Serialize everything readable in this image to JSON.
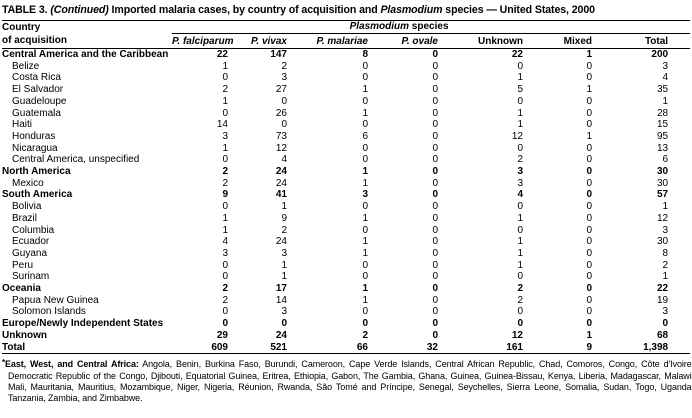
{
  "title": {
    "t1": "TABLE 3. ",
    "t2": "(Continued)",
    "t3": " Imported malaria cases, by country of acquisition and ",
    "t4": "Plasmodium",
    "t5": " species — United States, 2000"
  },
  "table": {
    "country_header_line1": "Country",
    "country_header_line2": "of acquisition",
    "group_header": {
      "italic": "Plasmodium",
      "rest": " species"
    },
    "columns": [
      {
        "label": "P. falciparum",
        "italic": true
      },
      {
        "label": "P. vivax",
        "italic": true
      },
      {
        "label": "P. malariae",
        "italic": true
      },
      {
        "label": "P. ovale",
        "italic": true
      },
      {
        "label": "Unknown",
        "italic": false
      },
      {
        "label": "Mixed",
        "italic": false
      },
      {
        "label": "Total",
        "italic": false
      }
    ],
    "rows": [
      {
        "label": "Central America and the Caribbean",
        "bold": true,
        "indent": false,
        "values": [
          "22",
          "147",
          "8",
          "0",
          "22",
          "1",
          "200"
        ]
      },
      {
        "label": "Belize",
        "bold": false,
        "indent": true,
        "values": [
          "1",
          "2",
          "0",
          "0",
          "0",
          "0",
          "3"
        ]
      },
      {
        "label": "Costa Rica",
        "bold": false,
        "indent": true,
        "values": [
          "0",
          "3",
          "0",
          "0",
          "1",
          "0",
          "4"
        ]
      },
      {
        "label": "El Salvador",
        "bold": false,
        "indent": true,
        "values": [
          "2",
          "27",
          "1",
          "0",
          "5",
          "1",
          "35"
        ]
      },
      {
        "label": "Guadeloupe",
        "bold": false,
        "indent": true,
        "values": [
          "1",
          "0",
          "0",
          "0",
          "0",
          "0",
          "1"
        ]
      },
      {
        "label": "Guatemala",
        "bold": false,
        "indent": true,
        "values": [
          "0",
          "26",
          "1",
          "0",
          "1",
          "0",
          "28"
        ]
      },
      {
        "label": "Haiti",
        "bold": false,
        "indent": true,
        "values": [
          "14",
          "0",
          "0",
          "0",
          "1",
          "0",
          "15"
        ]
      },
      {
        "label": "Honduras",
        "bold": false,
        "indent": true,
        "values": [
          "3",
          "73",
          "6",
          "0",
          "12",
          "1",
          "95"
        ]
      },
      {
        "label": "Nicaragua",
        "bold": false,
        "indent": true,
        "values": [
          "1",
          "12",
          "0",
          "0",
          "0",
          "0",
          "13"
        ]
      },
      {
        "label": "Central America, unspecified",
        "bold": false,
        "indent": true,
        "values": [
          "0",
          "4",
          "0",
          "0",
          "2",
          "0",
          "6"
        ]
      },
      {
        "label": "North America",
        "bold": true,
        "indent": false,
        "values": [
          "2",
          "24",
          "1",
          "0",
          "3",
          "0",
          "30"
        ]
      },
      {
        "label": "Mexico",
        "bold": false,
        "indent": true,
        "values": [
          "2",
          "24",
          "1",
          "0",
          "3",
          "0",
          "30"
        ]
      },
      {
        "label": "South America",
        "bold": true,
        "indent": false,
        "values": [
          "9",
          "41",
          "3",
          "0",
          "4",
          "0",
          "57"
        ]
      },
      {
        "label": "Bolivia",
        "bold": false,
        "indent": true,
        "values": [
          "0",
          "1",
          "0",
          "0",
          "0",
          "0",
          "1"
        ]
      },
      {
        "label": "Brazil",
        "bold": false,
        "indent": true,
        "values": [
          "1",
          "9",
          "1",
          "0",
          "1",
          "0",
          "12"
        ]
      },
      {
        "label": "Columbia",
        "bold": false,
        "indent": true,
        "values": [
          "1",
          "2",
          "0",
          "0",
          "0",
          "0",
          "3"
        ]
      },
      {
        "label": "Ecuador",
        "bold": false,
        "indent": true,
        "values": [
          "4",
          "24",
          "1",
          "0",
          "1",
          "0",
          "30"
        ]
      },
      {
        "label": "Guyana",
        "bold": false,
        "indent": true,
        "values": [
          "3",
          "3",
          "1",
          "0",
          "1",
          "0",
          "8"
        ]
      },
      {
        "label": "Peru",
        "bold": false,
        "indent": true,
        "values": [
          "0",
          "1",
          "0",
          "0",
          "1",
          "0",
          "2"
        ]
      },
      {
        "label": "Surinam",
        "bold": false,
        "indent": true,
        "values": [
          "0",
          "1",
          "0",
          "0",
          "0",
          "0",
          "1"
        ]
      },
      {
        "label": "Oceania",
        "bold": true,
        "indent": false,
        "values": [
          "2",
          "17",
          "1",
          "0",
          "2",
          "0",
          "22"
        ]
      },
      {
        "label": "Papua New Guinea",
        "bold": false,
        "indent": true,
        "values": [
          "2",
          "14",
          "1",
          "0",
          "2",
          "0",
          "19"
        ]
      },
      {
        "label": "Solomon Islands",
        "bold": false,
        "indent": true,
        "values": [
          "0",
          "3",
          "0",
          "0",
          "0",
          "0",
          "3"
        ]
      },
      {
        "label": "Europe/Newly Independent States",
        "bold": true,
        "indent": false,
        "values": [
          "0",
          "0",
          "0",
          "0",
          "0",
          "0",
          "0"
        ]
      },
      {
        "label": "Unknown",
        "bold": true,
        "indent": false,
        "values": [
          "29",
          "24",
          "2",
          "0",
          "12",
          "1",
          "68"
        ]
      },
      {
        "label": "Total",
        "bold": true,
        "indent": false,
        "values": [
          "609",
          "521",
          "66",
          "32",
          "161",
          "9",
          "1,398"
        ]
      }
    ]
  },
  "footnote": {
    "marker": "*",
    "lead": "East, West, and Central Africa:",
    "text": " Angola, Benin, Burkina Faso, Burundi, Cameroon, Cape Verde Islands, Central African Republic, Chad, Comoros, Congo, Côte d'Ivoire, Democratic Republic of the Congo, Djibouti, Equatorial Guinea, Eritrea, Ethiopia, Gabon, The Gambia, Ghana, Guinea, Guinea-Bissau, Kenya, Liberia, Madagascar, Malawi, Mali, Mauritania, Mauritius, Mozambique, Niger, Nigeria, Réunion, Rwanda, São Tomé and Príncipe, Senegal, Seychelles, Sierra Leone, Somalia, Sudan, Togo, Uganda, Tanzania, Zambia, and Zimbabwe."
  }
}
